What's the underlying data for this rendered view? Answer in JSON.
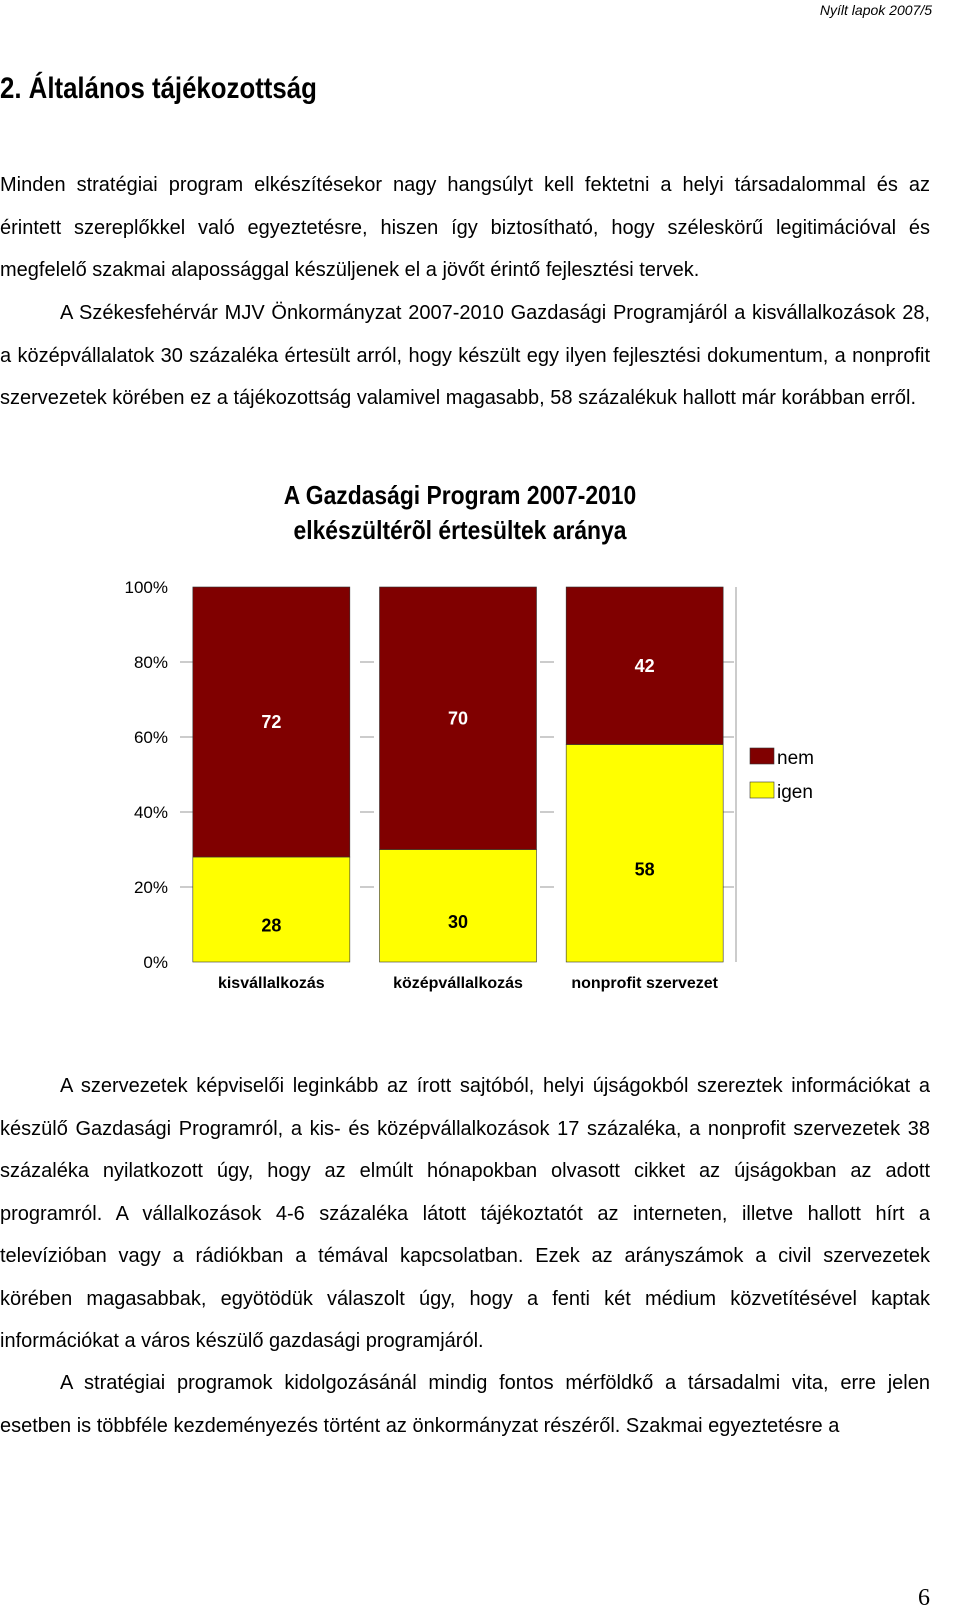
{
  "header": {
    "right_label": "Nyílt lapok 2007/5"
  },
  "section": {
    "title": "2. Általános tájékozottság"
  },
  "paragraphs": {
    "p1": "Minden stratégiai program elkészítésekor nagy hangsúlyt kell fektetni a helyi társadalommal és az érintett szereplőkkel való egyeztetésre, hiszen így biztosítható, hogy széleskörű legitimációval és megfelelő szakmai alapossággal készüljenek el a jövőt érintő fejlesztési tervek.",
    "p2": "A Székesfehérvár MJV Önkormányzat 2007-2010 Gazdasági Programjáról a kisvállalkozások 28, a középvállalatok 30 százaléka értesült arról, hogy készült egy ilyen fejlesztési dokumentum, a nonprofit szervezetek körében ez a tájékozottság valamivel magasabb, 58 százalékuk hallott már korábban erről.",
    "p3": "A szervezetek képviselői leginkább az írott sajtóból, helyi újságokból szereztek információkat a készülő Gazdasági Programról, a kis- és középvállalkozások 17 százaléka, a nonprofit szervezetek 38 százaléka nyilatkozott úgy, hogy az elmúlt hónapokban olvasott cikket az újságokban az adott programról. A vállalkozások 4-6 százaléka látott tájékoztatót az interneten, illetve hallott hírt a televízióban vagy a rádiókban a témával kapcsolatban. Ezek az arányszámok a civil szervezetek körében magasabbak, egyötödük válaszolt úgy, hogy a fenti két médium közvetítésével kaptak információkat a város készülő gazdasági programjáról.",
    "p4": "A stratégiai programok kidolgozásánál mindig fontos mérföldkő a társadalmi vita, erre jelen esetben is többféle kezdeményezés történt az önkormányzat részéről. Szakmai egyeztetésre a"
  },
  "chart_data": {
    "type": "bar",
    "stacked": true,
    "title_lines": [
      "A Gazdasági Program 2007-2010",
      "elkészültérõl értesültek aránya"
    ],
    "categories": [
      "kisvállalkozás",
      "középvállalkozás",
      "nonprofit szervezet"
    ],
    "series": [
      {
        "name": "igen",
        "values": [
          28,
          30,
          58
        ],
        "color": "#ffff00"
      },
      {
        "name": "nem",
        "values": [
          72,
          70,
          42
        ],
        "color": "#800000"
      }
    ],
    "y_ticks": [
      "0%",
      "20%",
      "40%",
      "60%",
      "80%",
      "100%"
    ],
    "ylim": [
      0,
      100
    ],
    "grid": "dashed",
    "legend": "right"
  },
  "page": {
    "number": "6"
  }
}
